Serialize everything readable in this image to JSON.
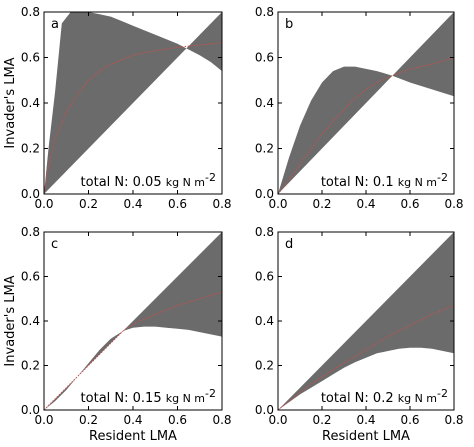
{
  "chart_data": [
    {
      "type": "area",
      "panel": "a",
      "annotation_main": "total N: 0.05",
      "annotation_unit": "kg N m",
      "annotation_exp": "-2",
      "xlabel": "",
      "ylabel": "Invader's LMA",
      "xlim": [
        0,
        0.8
      ],
      "ylim": [
        0,
        0.8
      ],
      "xticks": [
        "0.0",
        "0.2",
        "0.4",
        "0.6",
        "0.8"
      ],
      "yticks": [
        "0.0",
        "0.2",
        "0.4",
        "0.6",
        "0.8"
      ],
      "boundary_crossing": 0.64,
      "shaded_upper_x": [
        0.0,
        0.02,
        0.05,
        0.08,
        0.12,
        0.16,
        0.2,
        0.25,
        0.3,
        0.35,
        0.4,
        0.45,
        0.5,
        0.55,
        0.6,
        0.64,
        0.7,
        0.75,
        0.8
      ],
      "shaded_upper_y": [
        0.0,
        0.2,
        0.45,
        0.75,
        0.8,
        0.8,
        0.8,
        0.79,
        0.78,
        0.76,
        0.74,
        0.72,
        0.7,
        0.68,
        0.66,
        0.64,
        0.61,
        0.58,
        0.54
      ],
      "shaded_lower_x": [
        0.0,
        0.8
      ],
      "shaded_lower_y": [
        0.0,
        0.8
      ],
      "red_x": [
        0.0,
        0.02,
        0.05,
        0.1,
        0.15,
        0.2,
        0.25,
        0.3,
        0.4,
        0.5,
        0.6,
        0.7,
        0.8
      ],
      "red_y": [
        0.0,
        0.12,
        0.24,
        0.36,
        0.44,
        0.5,
        0.54,
        0.57,
        0.61,
        0.63,
        0.645,
        0.655,
        0.665
      ]
    },
    {
      "type": "area",
      "panel": "b",
      "annotation_main": "total N: 0.1",
      "annotation_unit": "kg N m",
      "annotation_exp": "-2",
      "xlabel": "",
      "ylabel": "",
      "xlim": [
        0,
        0.8
      ],
      "ylim": [
        0,
        0.8
      ],
      "xticks": [
        "0.0",
        "0.2",
        "0.4",
        "0.6",
        "0.8"
      ],
      "yticks": [
        "0.0",
        "0.2",
        "0.4",
        "0.6",
        "0.8"
      ],
      "boundary_crossing": 0.52,
      "shaded_upper_x": [
        0.0,
        0.05,
        0.1,
        0.15,
        0.2,
        0.25,
        0.3,
        0.35,
        0.4,
        0.45,
        0.52,
        0.6,
        0.7,
        0.8
      ],
      "shaded_upper_y": [
        0.0,
        0.16,
        0.3,
        0.41,
        0.49,
        0.54,
        0.56,
        0.56,
        0.55,
        0.54,
        0.52,
        0.49,
        0.46,
        0.43
      ],
      "shaded_lower_x": [
        0.0,
        0.8
      ],
      "shaded_lower_y": [
        0.0,
        0.8
      ],
      "red_x": [
        0.0,
        0.05,
        0.1,
        0.15,
        0.2,
        0.25,
        0.3,
        0.35,
        0.4,
        0.45,
        0.52,
        0.6,
        0.7,
        0.8
      ],
      "red_y": [
        0.0,
        0.06,
        0.13,
        0.2,
        0.26,
        0.32,
        0.37,
        0.42,
        0.46,
        0.49,
        0.52,
        0.55,
        0.57,
        0.6
      ]
    },
    {
      "type": "area",
      "panel": "c",
      "annotation_main": "total N: 0.15",
      "annotation_unit": "kg N m",
      "annotation_exp": "-2",
      "xlabel": "Resident LMA",
      "ylabel": "Invader's LMA",
      "xlim": [
        0,
        0.8
      ],
      "ylim": [
        0,
        0.8
      ],
      "xticks": [
        "0.0",
        "0.2",
        "0.4",
        "0.6",
        "0.8"
      ],
      "yticks": [
        "0.0",
        "0.2",
        "0.4",
        "0.6",
        "0.8"
      ],
      "boundary_crossing": 0.355,
      "shaded_upper_x": [
        0.0,
        0.05,
        0.1,
        0.15,
        0.2,
        0.25,
        0.3,
        0.355,
        0.4,
        0.45,
        0.5,
        0.55,
        0.6,
        0.65,
        0.7,
        0.75,
        0.8
      ],
      "shaded_upper_y": [
        0.0,
        0.04,
        0.09,
        0.15,
        0.21,
        0.27,
        0.32,
        0.355,
        0.37,
        0.375,
        0.375,
        0.37,
        0.365,
        0.36,
        0.35,
        0.34,
        0.33
      ],
      "shaded_lower_x": [
        0.0,
        0.8
      ],
      "shaded_lower_y": [
        0.0,
        0.8
      ],
      "red_x": [
        0.0,
        0.1,
        0.2,
        0.3,
        0.355,
        0.4,
        0.5,
        0.6,
        0.7,
        0.8
      ],
      "red_y": [
        0.0,
        0.1,
        0.2,
        0.3,
        0.355,
        0.385,
        0.43,
        0.47,
        0.5,
        0.53
      ]
    },
    {
      "type": "area",
      "panel": "d",
      "annotation_main": "total N: 0.2",
      "annotation_unit": "kg N m",
      "annotation_exp": "-2",
      "xlabel": "Resident LMA",
      "ylabel": "",
      "xlim": [
        0,
        0.8
      ],
      "ylim": [
        0,
        0.8
      ],
      "xticks": [
        "0.0",
        "0.2",
        "0.4",
        "0.6",
        "0.8"
      ],
      "yticks": [
        "0.0",
        "0.2",
        "0.4",
        "0.6",
        "0.8"
      ],
      "boundary_crossing": null,
      "shaded_upper_x": [
        0.0,
        0.05,
        0.1,
        0.15,
        0.2,
        0.25,
        0.3,
        0.35,
        0.4,
        0.45,
        0.5,
        0.55,
        0.6,
        0.65,
        0.7,
        0.75,
        0.8
      ],
      "shaded_upper_y": [
        0.0,
        0.035,
        0.07,
        0.1,
        0.13,
        0.16,
        0.19,
        0.215,
        0.235,
        0.255,
        0.265,
        0.275,
        0.28,
        0.28,
        0.275,
        0.265,
        0.255
      ],
      "shaded_lower_x": [
        0.0,
        0.8
      ],
      "shaded_lower_y": [
        0.0,
        0.8
      ],
      "red_x": [
        0.0,
        0.1,
        0.2,
        0.3,
        0.4,
        0.5,
        0.6,
        0.7,
        0.8
      ],
      "red_y": [
        0.0,
        0.08,
        0.15,
        0.21,
        0.27,
        0.33,
        0.38,
        0.43,
        0.47
      ]
    }
  ],
  "colors": {
    "shade": "#6b6b6b",
    "red_line": "#c8504a",
    "axis": "#000000"
  }
}
